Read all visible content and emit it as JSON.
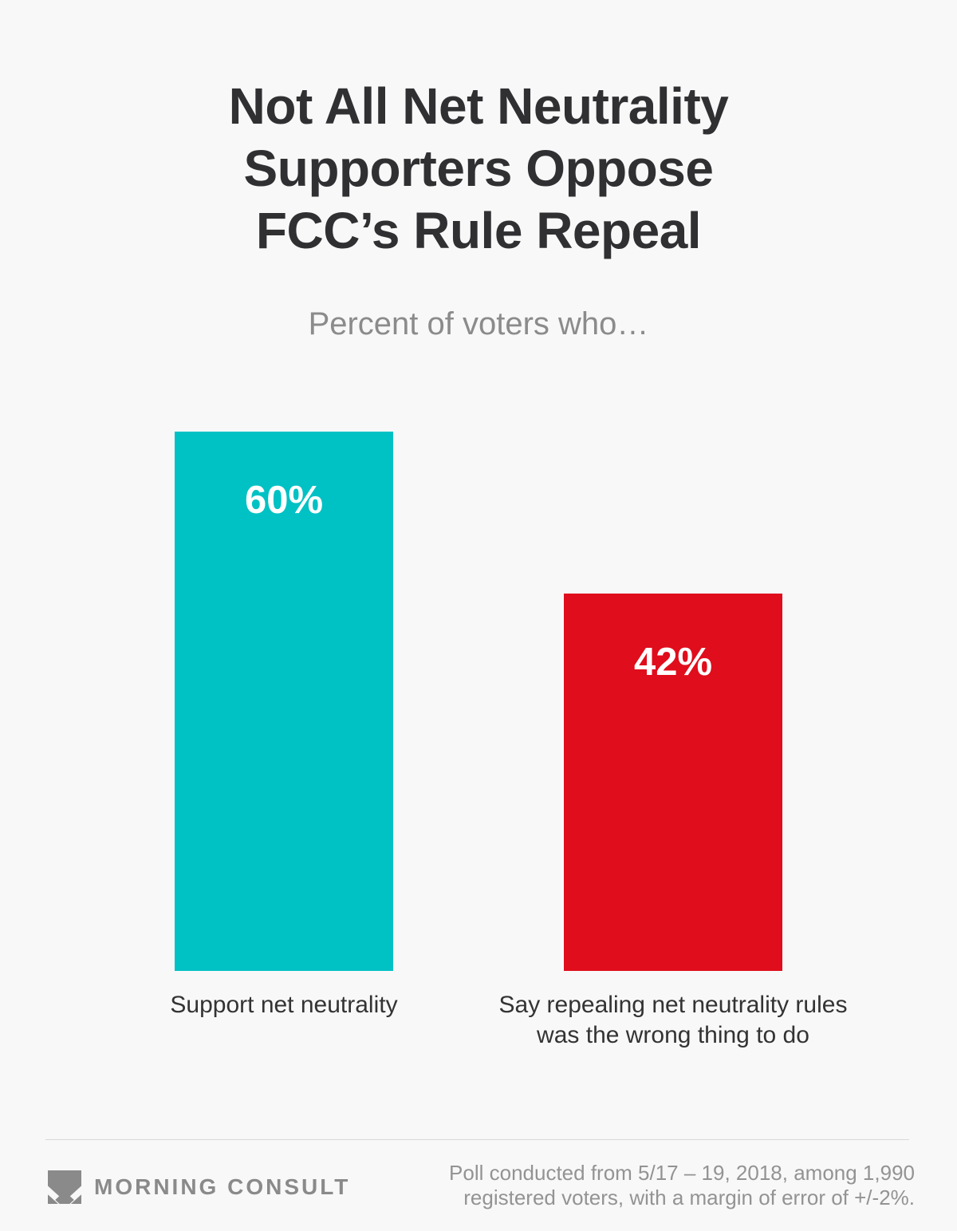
{
  "chart_data": {
    "type": "bar",
    "orientation": "vertical",
    "title": "Not All Net Neutrality Supporters Oppose FCC’s Rule Repeal",
    "subtitle": "Percent of voters who…",
    "categories": [
      "Support net neutrality",
      "Say repealing net neutrality rules was the wrong thing to do"
    ],
    "values": [
      60,
      42
    ],
    "value_labels": [
      "60%",
      "42%"
    ],
    "bar_colors": [
      "#00C1C4",
      "#E00D1C"
    ],
    "value_label_color": "#FFFFFF",
    "ylim": [
      0,
      100
    ],
    "grid": false,
    "legend": "none"
  },
  "display": {
    "title_lines": [
      "Not All Net Neutrality",
      "Supporters Oppose",
      "FCC’s Rule Repeal"
    ],
    "category_2_lines": [
      "Say repealing net neutrality rules",
      "was the wrong thing to do"
    ]
  },
  "footer": {
    "brand": "MORNING CONSULT",
    "note_lines": [
      "Poll conducted from 5/17 – 19, 2018, among 1,990",
      "registered voters, with a margin of error of +/-2%."
    ]
  },
  "colors": {
    "background": "#F8F8F8",
    "title": "#303033",
    "subtitle": "#8B8B8B",
    "category_label": "#333333",
    "footer_note": "#939393",
    "brand_gray": "#8A8A8A",
    "divider": "#D9D9D9"
  }
}
